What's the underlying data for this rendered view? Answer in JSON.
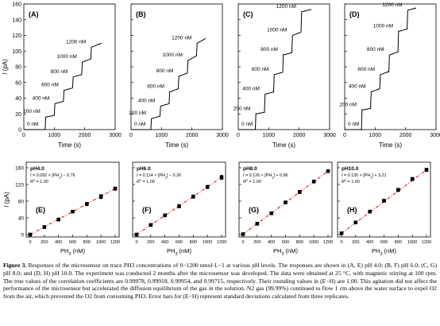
{
  "figure": {
    "time_panels": {
      "y_axis_label": "I (pA)",
      "x_axis_label": "Time (s)",
      "y_ticks": [
        "0",
        "20",
        "40",
        "60",
        "80",
        "100",
        "120",
        "140",
        "160"
      ],
      "x_ticks": [
        "0",
        "1000",
        "2000",
        "3000"
      ],
      "level_labels": [
        "0 nM",
        "200 nM",
        "400 nM",
        "600 nM",
        "800 nM",
        "1000 nM",
        "1200 nM"
      ]
    },
    "calibration_panels": {
      "y_axis_label": "I (pA)",
      "x_axis_label": "PH3 (nM)",
      "y_ticks": [
        "0",
        "40",
        "80",
        "120",
        "160"
      ],
      "x_ticks": [
        "0",
        "200",
        "400",
        "600",
        "800",
        "1000",
        "1200"
      ]
    }
  },
  "chart_data": [
    {
      "type": "line",
      "panel": "(A)",
      "xlabel": "Time (s)",
      "ylabel": "I (pA)",
      "xlim": [
        0,
        3000
      ],
      "ylim": [
        0,
        160
      ],
      "x": [
        0,
        700,
        720,
        1000,
        1020,
        1300,
        1320,
        1600,
        1620,
        1900,
        1920,
        2200,
        2220,
        2550
      ],
      "y": [
        0,
        0,
        16,
        18,
        33,
        36,
        50,
        53,
        67,
        70,
        86,
        90,
        105,
        110
      ],
      "annotations": [
        "0 nM",
        "200 nM",
        "400 nM",
        "600 nM",
        "800 nM",
        "1000 nM",
        "1200 nM"
      ]
    },
    {
      "type": "line",
      "panel": "(B)",
      "xlabel": "Time (s)",
      "ylabel": "I (pA)",
      "xlim": [
        0,
        3000
      ],
      "ylim": [
        0,
        160
      ],
      "x": [
        0,
        650,
        670,
        950,
        970,
        1250,
        1270,
        1550,
        1570,
        1850,
        1870,
        2150,
        2170,
        2450
      ],
      "y": [
        0,
        0,
        14,
        17,
        30,
        33,
        48,
        52,
        68,
        72,
        88,
        94,
        110,
        116
      ],
      "annotations": [
        "0 nM",
        "200 nM",
        "400 nM",
        "600 nM",
        "800 nM",
        "1000 nM",
        "1200 nM"
      ]
    },
    {
      "type": "line",
      "panel": "(C)",
      "xlabel": "Time (s)",
      "ylabel": "I (pA)",
      "xlim": [
        0,
        3000
      ],
      "ylim": [
        0,
        160
      ],
      "x": [
        0,
        560,
        580,
        860,
        880,
        1160,
        1180,
        1460,
        1480,
        1760,
        1780,
        2060,
        2080,
        2400
      ],
      "y": [
        0,
        0,
        20,
        22,
        45,
        48,
        70,
        73,
        95,
        98,
        120,
        124,
        150,
        153
      ],
      "annotations": [
        "0 nM",
        "200 nM",
        "400 nM",
        "600 nM",
        "800 nM",
        "1000 nM",
        "1200 nM"
      ]
    },
    {
      "type": "line",
      "panel": "(D)",
      "xlabel": "Time (s)",
      "ylabel": "I (pA)",
      "xlim": [
        0,
        3000
      ],
      "ylim": [
        0,
        160
      ],
      "x": [
        0,
        550,
        570,
        850,
        870,
        1150,
        1170,
        1450,
        1470,
        1750,
        1770,
        2050,
        2070,
        2350
      ],
      "y": [
        0,
        0,
        25,
        27,
        48,
        52,
        70,
        74,
        95,
        99,
        125,
        128,
        152,
        155
      ],
      "annotations": [
        "0 nM",
        "200 nM",
        "400 nM",
        "600 nM",
        "800 nM",
        "1000 nM",
        "1200 nM"
      ]
    },
    {
      "type": "scatter",
      "panel": "(E)",
      "condition": "pH4.0",
      "equation": "I = 0.092 × [PH3] − 0.76",
      "r2": "R² = 1.00",
      "xlabel": "PH3 (nM)",
      "ylabel": "I (pA)",
      "xlim": [
        0,
        1200
      ],
      "ylim": [
        0,
        160
      ],
      "x": [
        0,
        200,
        400,
        600,
        800,
        1000,
        1200
      ],
      "y": [
        0,
        18,
        36,
        55,
        73,
        91,
        110
      ],
      "errors": [
        2,
        3,
        3,
        3,
        4,
        5,
        4
      ]
    },
    {
      "type": "scatter",
      "panel": "(F)",
      "condition": "pH6.0",
      "equation": "I = 0.114 × [PH3] − 0.26",
      "r2": "R² = 1.00",
      "xlabel": "PH3 (nM)",
      "ylabel": "I (pA)",
      "xlim": [
        0,
        1200
      ],
      "ylim": [
        0,
        160
      ],
      "x": [
        0,
        200,
        400,
        600,
        800,
        1000,
        1200
      ],
      "y": [
        0,
        23,
        46,
        68,
        91,
        114,
        137
      ],
      "errors": [
        2,
        3,
        3,
        4,
        4,
        4,
        5
      ]
    },
    {
      "type": "scatter",
      "panel": "(G)",
      "condition": "pH8.0",
      "equation": "I = 0.126 × [PH3] + 0.96",
      "r2": "R² = 1.00",
      "xlabel": "PH3 (nM)",
      "ylabel": "I (pA)",
      "xlim": [
        0,
        1200
      ],
      "ylim": [
        0,
        160
      ],
      "x": [
        0,
        200,
        400,
        600,
        800,
        1000,
        1200
      ],
      "y": [
        1,
        26,
        51,
        77,
        102,
        127,
        152
      ],
      "errors": [
        2,
        3,
        3,
        3,
        4,
        3,
        3
      ]
    },
    {
      "type": "scatter",
      "panel": "(H)",
      "condition": "pH10.0",
      "equation": "I = 0.130 × [PH3] + 3.21",
      "r2": "R² = 1.00",
      "xlabel": "PH3 (nM)",
      "ylabel": "I (pA)",
      "xlim": [
        0,
        1200
      ],
      "ylim": [
        0,
        160
      ],
      "x": [
        0,
        200,
        400,
        600,
        800,
        1000,
        1200
      ],
      "y": [
        3,
        29,
        55,
        81,
        107,
        133,
        155
      ],
      "errors": [
        2,
        3,
        3,
        3,
        4,
        4,
        4
      ]
    }
  ],
  "caption": {
    "label": "Figure 3.",
    "text": "Responses of the microsensor on trace PH3 concentrations of 0−1200 nmol·L−1 at various pH levels. The responses are shown in (A, E) pH 4.0; (B, F) pH 6.0; (C, G) pH 8.0; and (D, H) pH 10.0. The experiment was conducted 2 months after the microsensor was developed. The data were obtained at 25 °C, with magnetic stirring at 100 rpm. The true values of the correlation coefficients are 0.99978, 0.99918, 0.99954, and 0.99715, respectively. Their rounding values in (E−H) are 1.00. This agitation did not affect the performance of the microsensor but accelerated the diffusion equilibrium of the gas in the solution. N2 gas (99.99%) continued to flow 1 cm above the water surface to expel O2 from the air, which prevented the O2 from consuming PH3. Error bars for (E−H) represent standard deviations calculated from three replicates."
  }
}
